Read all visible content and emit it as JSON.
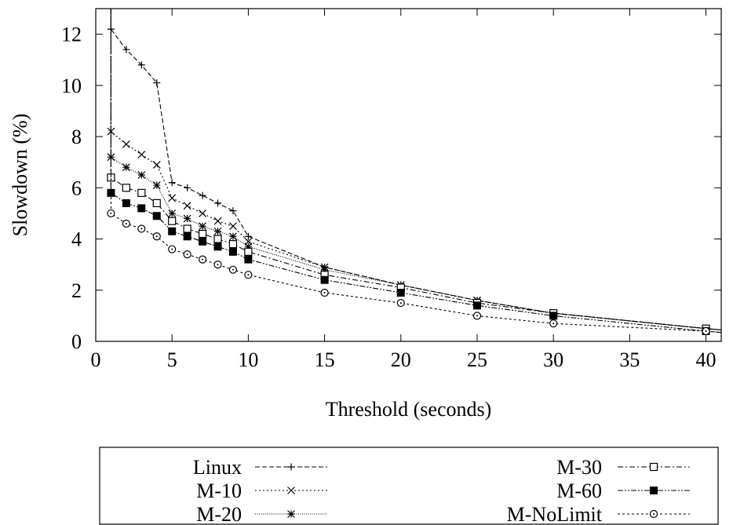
{
  "chart_data": {
    "type": "line",
    "title": "",
    "xlabel": "Threshold (seconds)",
    "ylabel": "Slowdown (%)",
    "xlim": [
      0,
      41
    ],
    "ylim": [
      0,
      13
    ],
    "x_ticks": [
      0,
      5,
      10,
      15,
      20,
      25,
      30,
      35,
      40
    ],
    "y_ticks": [
      0,
      2,
      4,
      6,
      8,
      10,
      12
    ],
    "grid": false,
    "legend_position": "below-plot",
    "series": [
      {
        "name": "Linux",
        "marker": "plus",
        "dash": "dashed",
        "x": [
          1,
          2,
          3,
          4,
          5,
          6,
          7,
          8,
          9,
          10,
          15,
          20,
          25,
          30,
          40
        ],
        "y": [
          12.2,
          11.4,
          10.8,
          10.1,
          6.2,
          6.0,
          5.7,
          5.4,
          5.1,
          4.1,
          2.9,
          2.2,
          1.6,
          1.1,
          0.5
        ]
      },
      {
        "name": "M-10",
        "marker": "cross",
        "dash": "dotted",
        "x": [
          1,
          2,
          3,
          4,
          5,
          6,
          7,
          8,
          9,
          10,
          15,
          20,
          25,
          30,
          40
        ],
        "y": [
          8.2,
          7.7,
          7.3,
          6.9,
          5.6,
          5.3,
          5.0,
          4.7,
          4.5,
          3.9,
          2.9,
          2.2,
          1.6,
          1.1,
          0.5
        ]
      },
      {
        "name": "M-20",
        "marker": "star",
        "dash": "fine-dotted",
        "x": [
          1,
          2,
          3,
          4,
          5,
          6,
          7,
          8,
          9,
          10,
          15,
          20,
          25,
          30,
          40
        ],
        "y": [
          7.2,
          6.8,
          6.5,
          6.1,
          5.0,
          4.8,
          4.5,
          4.3,
          4.1,
          3.7,
          2.8,
          2.2,
          1.6,
          1.1,
          0.5
        ]
      },
      {
        "name": "M-30",
        "marker": "open-square",
        "dash": "dash-dot",
        "x": [
          1,
          2,
          3,
          4,
          5,
          6,
          7,
          8,
          9,
          10,
          15,
          20,
          25,
          30,
          40
        ],
        "y": [
          6.4,
          6.0,
          5.8,
          5.4,
          4.7,
          4.4,
          4.2,
          4.0,
          3.8,
          3.5,
          2.6,
          2.1,
          1.5,
          1.1,
          0.5
        ]
      },
      {
        "name": "M-60",
        "marker": "filled-square",
        "dash": "dash-dot-dot",
        "x": [
          1,
          2,
          3,
          4,
          5,
          6,
          7,
          8,
          9,
          10,
          15,
          20,
          25,
          30,
          40
        ],
        "y": [
          5.8,
          5.4,
          5.2,
          4.9,
          4.3,
          4.1,
          3.9,
          3.7,
          3.5,
          3.2,
          2.4,
          1.9,
          1.4,
          1.0,
          0.4
        ]
      },
      {
        "name": "M-NoLimit",
        "marker": "open-circle",
        "dash": "short-dashed",
        "x": [
          1,
          2,
          3,
          4,
          5,
          6,
          7,
          8,
          9,
          10,
          15,
          20,
          25,
          30,
          40
        ],
        "y": [
          5.0,
          4.6,
          4.4,
          4.1,
          3.6,
          3.4,
          3.2,
          3.0,
          2.8,
          2.6,
          1.9,
          1.5,
          1.0,
          0.7,
          0.4
        ]
      }
    ]
  }
}
